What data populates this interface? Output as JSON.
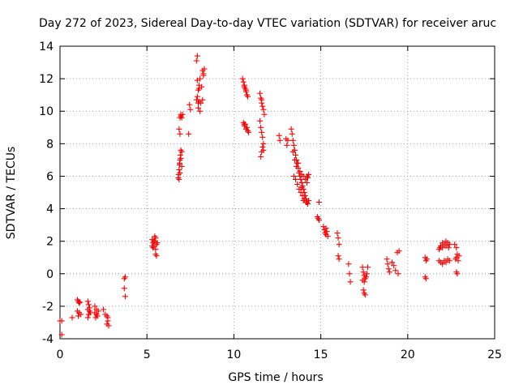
{
  "chart_data": {
    "type": "scatter",
    "title": "Day 272 of 2023, Sidereal Day-to-day VTEC variation (SDTVAR) for receiver aruc",
    "xlabel": "GPS time / hours",
    "ylabel": "SDTVAR / TECUs",
    "xlim": [
      0,
      25
    ],
    "ylim": [
      -4,
      14
    ],
    "xticks": [
      "0",
      "5",
      "10",
      "15",
      "20",
      "25"
    ],
    "yticks": [
      "-4",
      "-2",
      "0",
      "2",
      "4",
      "6",
      "8",
      "10",
      "12",
      "14"
    ],
    "grid": true,
    "marker": "plus",
    "series": [
      {
        "name": "SDTVAR",
        "color": "#ff0000",
        "points": [
          [
            0.0,
            -2.9
          ],
          [
            0.1,
            -2.9
          ],
          [
            0.1,
            -3.75
          ],
          [
            0.7,
            -2.7
          ],
          [
            1.0,
            -1.6
          ],
          [
            1.05,
            -1.7
          ],
          [
            1.1,
            -1.8
          ],
          [
            1.0,
            -2.3
          ],
          [
            1.1,
            -2.4
          ],
          [
            1.05,
            -2.6
          ],
          [
            1.2,
            -2.5
          ],
          [
            1.15,
            -1.75
          ],
          [
            1.6,
            -1.7
          ],
          [
            1.65,
            -1.9
          ],
          [
            1.6,
            -2.2
          ],
          [
            1.7,
            -2.3
          ],
          [
            1.65,
            -2.5
          ],
          [
            1.6,
            -2.7
          ],
          [
            1.75,
            -2.4
          ],
          [
            1.7,
            -2.1
          ],
          [
            2.0,
            -2.0
          ],
          [
            2.1,
            -2.2
          ],
          [
            2.0,
            -2.4
          ],
          [
            2.15,
            -2.6
          ],
          [
            2.1,
            -2.5
          ],
          [
            2.2,
            -2.3
          ],
          [
            2.05,
            -2.7
          ],
          [
            2.5,
            -2.2
          ],
          [
            2.6,
            -2.5
          ],
          [
            2.7,
            -2.6
          ],
          [
            2.75,
            -2.9
          ],
          [
            2.7,
            -3.1
          ],
          [
            2.8,
            -3.2
          ],
          [
            2.75,
            -2.7
          ],
          [
            3.7,
            -0.3
          ],
          [
            3.75,
            -0.2
          ],
          [
            3.7,
            -0.9
          ],
          [
            3.75,
            -1.4
          ],
          [
            5.3,
            2.1
          ],
          [
            5.35,
            1.9
          ],
          [
            5.4,
            1.7
          ],
          [
            5.45,
            2.0
          ],
          [
            5.5,
            1.5
          ],
          [
            5.35,
            1.6
          ],
          [
            5.5,
            2.2
          ],
          [
            5.55,
            1.8
          ],
          [
            5.45,
            2.3
          ],
          [
            5.4,
            2.0
          ],
          [
            5.5,
            1.2
          ],
          [
            5.55,
            1.1
          ],
          [
            5.3,
            1.7
          ],
          [
            5.6,
            1.9
          ],
          [
            6.8,
            5.9
          ],
          [
            6.82,
            6.1
          ],
          [
            6.85,
            6.4
          ],
          [
            6.87,
            6.7
          ],
          [
            6.9,
            7.0
          ],
          [
            6.92,
            7.3
          ],
          [
            6.95,
            7.6
          ],
          [
            6.9,
            6.2
          ],
          [
            6.88,
            6.8
          ],
          [
            6.95,
            7.1
          ],
          [
            7.0,
            7.5
          ],
          [
            6.85,
            5.8
          ],
          [
            7.0,
            6.6
          ],
          [
            6.9,
            8.6
          ],
          [
            6.85,
            8.9
          ],
          [
            6.9,
            9.6
          ],
          [
            6.95,
            9.8
          ],
          [
            7.0,
            9.6
          ],
          [
            7.05,
            9.8
          ],
          [
            6.95,
            9.7
          ],
          [
            7.4,
            8.6
          ],
          [
            7.5,
            10.1
          ],
          [
            7.45,
            10.4
          ],
          [
            7.85,
            10.7
          ],
          [
            7.9,
            10.9
          ],
          [
            7.95,
            11.3
          ],
          [
            8.0,
            11.6
          ],
          [
            7.9,
            11.9
          ],
          [
            8.05,
            12.0
          ],
          [
            8.0,
            11.4
          ],
          [
            7.85,
            13.1
          ],
          [
            7.9,
            13.4
          ],
          [
            7.95,
            10.2
          ],
          [
            8.0,
            10.6
          ],
          [
            8.1,
            10.5
          ],
          [
            8.2,
            10.7
          ],
          [
            8.15,
            11.5
          ],
          [
            8.25,
            12.2
          ],
          [
            8.2,
            12.5
          ],
          [
            8.3,
            12.6
          ],
          [
            8.25,
            12.3
          ],
          [
            7.95,
            10.5
          ],
          [
            8.05,
            10.0
          ],
          [
            10.5,
            12.0
          ],
          [
            10.55,
            11.8
          ],
          [
            10.6,
            11.6
          ],
          [
            10.65,
            11.4
          ],
          [
            10.7,
            11.2
          ],
          [
            10.75,
            11.0
          ],
          [
            10.8,
            10.9
          ],
          [
            10.6,
            11.5
          ],
          [
            10.7,
            11.3
          ],
          [
            10.55,
            9.3
          ],
          [
            10.6,
            9.1
          ],
          [
            10.65,
            9.2
          ],
          [
            10.7,
            8.9
          ],
          [
            10.75,
            9.0
          ],
          [
            10.8,
            8.8
          ],
          [
            10.85,
            8.7
          ],
          [
            10.6,
            9.2
          ],
          [
            11.5,
            11.1
          ],
          [
            11.55,
            10.8
          ],
          [
            11.6,
            10.5
          ],
          [
            11.65,
            10.3
          ],
          [
            11.7,
            10.1
          ],
          [
            11.75,
            9.8
          ],
          [
            11.6,
            10.7
          ],
          [
            11.5,
            9.4
          ],
          [
            11.55,
            9.0
          ],
          [
            11.6,
            8.7
          ],
          [
            11.65,
            8.4
          ],
          [
            11.7,
            8.0
          ],
          [
            11.65,
            7.8
          ],
          [
            11.6,
            7.5
          ],
          [
            11.55,
            7.2
          ],
          [
            11.7,
            7.6
          ],
          [
            12.6,
            8.5
          ],
          [
            12.65,
            8.2
          ],
          [
            13.0,
            8.3
          ],
          [
            13.1,
            8.2
          ],
          [
            13.05,
            7.9
          ],
          [
            13.3,
            8.9
          ],
          [
            13.35,
            8.6
          ],
          [
            13.4,
            8.2
          ],
          [
            13.45,
            7.9
          ],
          [
            13.5,
            7.6
          ],
          [
            13.55,
            7.3
          ],
          [
            13.6,
            7.0
          ],
          [
            13.65,
            6.8
          ],
          [
            13.7,
            6.5
          ],
          [
            13.75,
            6.2
          ],
          [
            13.8,
            6.0
          ],
          [
            13.85,
            5.8
          ],
          [
            13.9,
            5.6
          ],
          [
            13.95,
            5.4
          ],
          [
            14.0,
            5.2
          ],
          [
            14.05,
            5.0
          ],
          [
            14.1,
            4.8
          ],
          [
            14.15,
            4.6
          ],
          [
            14.2,
            4.4
          ],
          [
            13.4,
            7.5
          ],
          [
            13.5,
            7.0
          ],
          [
            13.6,
            6.6
          ],
          [
            13.7,
            6.8
          ],
          [
            13.8,
            6.3
          ],
          [
            13.9,
            6.1
          ],
          [
            14.0,
            6.0
          ],
          [
            14.1,
            5.8
          ],
          [
            14.2,
            5.6
          ],
          [
            14.25,
            5.9
          ],
          [
            14.3,
            6.1
          ],
          [
            14.2,
            6.0
          ],
          [
            13.45,
            6.0
          ],
          [
            13.55,
            5.8
          ],
          [
            13.65,
            5.5
          ],
          [
            13.75,
            5.2
          ],
          [
            13.85,
            5.0
          ],
          [
            13.95,
            4.8
          ],
          [
            14.05,
            4.6
          ],
          [
            14.15,
            4.4
          ],
          [
            14.25,
            4.3
          ],
          [
            14.3,
            4.5
          ],
          [
            14.0,
            4.5
          ],
          [
            13.9,
            5.3
          ],
          [
            14.9,
            4.4
          ],
          [
            14.8,
            3.5
          ],
          [
            14.85,
            3.4
          ],
          [
            14.9,
            3.3
          ],
          [
            15.15,
            2.9
          ],
          [
            15.2,
            2.7
          ],
          [
            15.25,
            2.5
          ],
          [
            15.3,
            2.4
          ],
          [
            15.35,
            2.6
          ],
          [
            15.4,
            2.3
          ],
          [
            15.3,
            2.8
          ],
          [
            15.95,
            2.5
          ],
          [
            16.0,
            2.2
          ],
          [
            16.05,
            1.8
          ],
          [
            16.0,
            1.1
          ],
          [
            16.05,
            0.9
          ],
          [
            16.6,
            0.6
          ],
          [
            16.65,
            0.0
          ],
          [
            16.7,
            -0.5
          ],
          [
            17.4,
            0.4
          ],
          [
            17.45,
            0.1
          ],
          [
            17.5,
            -0.1
          ],
          [
            17.55,
            -0.3
          ],
          [
            17.5,
            -0.5
          ],
          [
            17.6,
            -0.2
          ],
          [
            17.7,
            0.4
          ],
          [
            17.65,
            0.0
          ],
          [
            17.45,
            -1.0
          ],
          [
            17.5,
            -1.2
          ],
          [
            17.55,
            -1.3
          ],
          [
            17.4,
            -0.4
          ],
          [
            18.8,
            0.9
          ],
          [
            18.85,
            0.6
          ],
          [
            18.9,
            0.3
          ],
          [
            18.95,
            0.1
          ],
          [
            19.1,
            0.7
          ],
          [
            19.2,
            0.5
          ],
          [
            19.3,
            0.2
          ],
          [
            19.4,
            1.3
          ],
          [
            19.5,
            1.4
          ],
          [
            19.45,
            0.0
          ],
          [
            21.0,
            1.0
          ],
          [
            21.05,
            0.8
          ],
          [
            21.1,
            0.9
          ],
          [
            21.0,
            -0.2
          ],
          [
            21.05,
            -0.3
          ],
          [
            21.8,
            1.5
          ],
          [
            21.9,
            1.7
          ],
          [
            22.0,
            1.6
          ],
          [
            22.1,
            1.8
          ],
          [
            22.2,
            1.7
          ],
          [
            22.3,
            1.9
          ],
          [
            22.4,
            1.8
          ],
          [
            22.0,
            1.9
          ],
          [
            22.2,
            2.0
          ],
          [
            21.85,
            1.6
          ],
          [
            22.35,
            1.6
          ],
          [
            21.8,
            0.8
          ],
          [
            21.9,
            0.7
          ],
          [
            22.0,
            0.6
          ],
          [
            22.1,
            0.8
          ],
          [
            22.2,
            0.7
          ],
          [
            22.3,
            0.9
          ],
          [
            22.4,
            0.8
          ],
          [
            22.7,
            1.8
          ],
          [
            22.8,
            1.6
          ],
          [
            22.85,
            1.2
          ],
          [
            22.8,
            1.0
          ],
          [
            22.75,
            0.9
          ],
          [
            22.9,
            0.8
          ],
          [
            22.8,
            0.1
          ],
          [
            22.85,
            0.0
          ],
          [
            22.95,
            1.1
          ]
        ]
      }
    ]
  }
}
